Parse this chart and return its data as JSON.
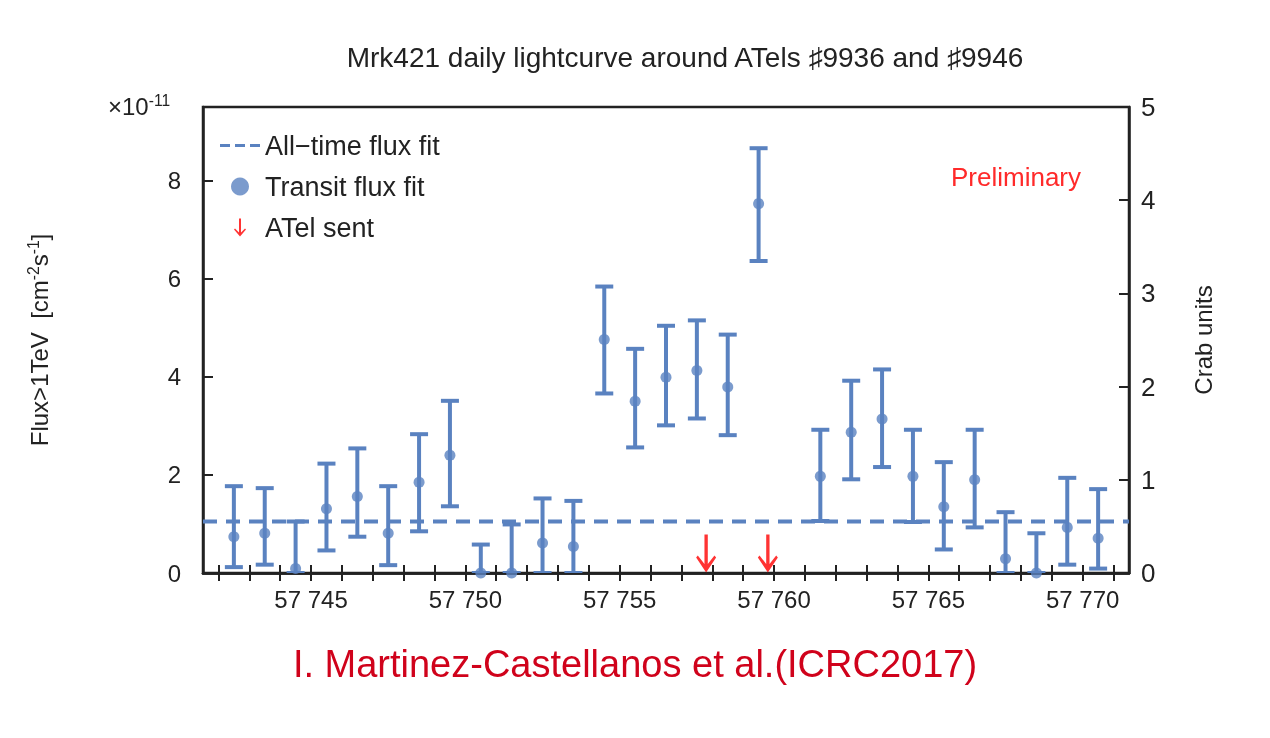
{
  "chart_data": {
    "type": "scatter",
    "title": "Mrk421 daily lightcurve around ATels ♯9936 and ♯9946",
    "ylabel": "Flux>1TeV  [cm$^{-2}$s$^{-1}$]",
    "y2label": "Crab units",
    "annotations": [
      "×10$^{-11}$",
      "Preliminary",
      "I. Martinez-Castellanos et al.(ICRC2017)"
    ],
    "xlim": [
      57741.5,
      57771.5
    ],
    "xticks": [
      {
        "value": 57745,
        "label": "57 745"
      },
      {
        "value": 57750,
        "label": "57 750"
      },
      {
        "value": 57755,
        "label": "57 755"
      },
      {
        "value": 57760,
        "label": "57 760"
      },
      {
        "value": 57765,
        "label": "57 765"
      },
      {
        "value": 57770,
        "label": "57 770"
      }
    ],
    "ylim": [
      0,
      9.5
    ],
    "yticks": [
      0,
      2,
      4,
      6,
      8
    ],
    "y2lim": [
      0,
      5
    ],
    "y2ticks": [
      0,
      1,
      2,
      3,
      4,
      5
    ],
    "legend": "top left",
    "grid": false,
    "series": [
      {
        "name": "All−time flux fit",
        "type": "line",
        "line_style": "dashed",
        "marker": "none",
        "color": "#5a82c0",
        "x": [
          57741.5,
          57771.5
        ],
        "values": [
          1.05,
          1.05
        ]
      },
      {
        "name": "Transit flux fit",
        "marker": "circle",
        "color": "#5a82c0",
        "x": [
          57742.5,
          57743.5,
          57744.5,
          57745.5,
          57746.5,
          57747.5,
          57748.5,
          57749.5,
          57750.5,
          57751.5,
          57752.5,
          57753.5,
          57754.5,
          57755.5,
          57756.5,
          57757.5,
          57758.5,
          57759.5,
          57761.5,
          57762.5,
          57763.5,
          57764.5,
          57765.5,
          57766.5,
          57767.5,
          57768.5,
          57769.5,
          57770.5
        ],
        "values": [
          0.74,
          0.81,
          0.09,
          1.31,
          1.56,
          0.81,
          1.85,
          2.4,
          0,
          0,
          0.61,
          0.54,
          4.76,
          3.5,
          3.99,
          4.13,
          3.79,
          7.53,
          1.97,
          2.87,
          3.14,
          1.97,
          1.35,
          1.9,
          0.29,
          0,
          0.93,
          0.71
        ],
        "errors": [
          [
            0.12,
            1.77
          ],
          [
            0.17,
            1.73
          ],
          [
            0,
            1.05
          ],
          [
            0.46,
            2.23
          ],
          [
            0.74,
            2.54
          ],
          [
            0.16,
            1.77
          ],
          [
            0.85,
            2.83
          ],
          [
            1.36,
            3.51
          ],
          [
            0,
            0.58
          ],
          [
            0,
            0.99
          ],
          [
            0,
            1.52
          ],
          [
            0,
            1.47
          ],
          [
            3.66,
            5.84
          ],
          [
            2.56,
            4.57
          ],
          [
            3.01,
            5.04
          ],
          [
            3.15,
            5.15
          ],
          [
            2.81,
            4.86
          ],
          [
            6.36,
            8.66
          ],
          [
            1.06,
            2.92
          ],
          [
            1.91,
            3.92
          ],
          [
            2.16,
            4.15
          ],
          [
            1.04,
            2.92
          ],
          [
            0.48,
            2.26
          ],
          [
            0.93,
            2.92
          ],
          [
            0,
            1.24
          ],
          [
            0,
            0.81
          ],
          [
            0.17,
            1.94
          ],
          [
            0.09,
            1.71
          ]
        ]
      },
      {
        "name": "ATel sent",
        "type": "scatter",
        "color": "#ff0000",
        "x": [
          57757.8,
          57759.8
        ],
        "values": [
          0.4,
          0.4
        ]
      }
    ]
  }
}
